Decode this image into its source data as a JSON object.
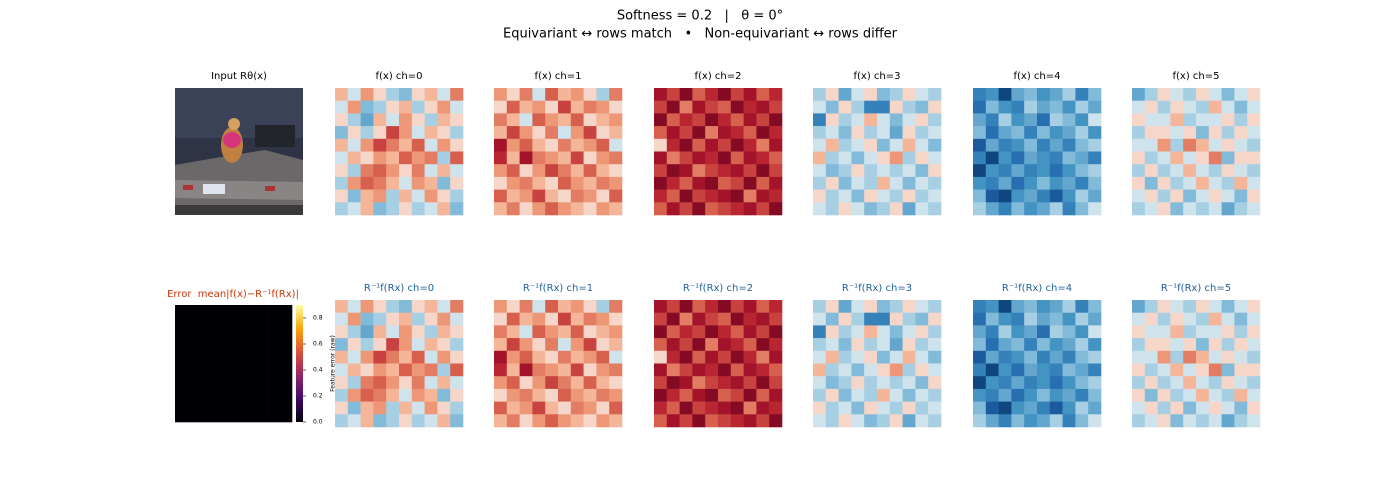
{
  "chart_data": {
    "type": "heatmap",
    "title": "Softness = 0.2   |   θ = 0°",
    "subtitle": "Equivariant ↔ rows match   •   Non-equivariant ↔ rows differ",
    "input_title": "Input Rθ(x)",
    "colormap": "RdBu_r",
    "clim": [
      -1,
      1
    ],
    "channels": [
      {
        "top_title": "f(x) ch=0",
        "bottom_title": "R⁻¹f(Rx) ch=0",
        "values": [
          [
            0.2,
            -0.1,
            0.3,
            0.1,
            -0.2,
            -0.3,
            0.1,
            0.2,
            -0.1,
            0.4
          ],
          [
            -0.1,
            0.3,
            -0.3,
            -0.2,
            0.1,
            0.2,
            -0.2,
            0.1,
            0.3,
            -0.1
          ],
          [
            0.1,
            -0.2,
            -0.4,
            0.2,
            -0.1,
            0.3,
            0.1,
            -0.2,
            0.2,
            0.1
          ],
          [
            -0.3,
            0.1,
            -0.2,
            0.1,
            0.6,
            0.3,
            -0.1,
            0.2,
            0.1,
            -0.2
          ],
          [
            0.2,
            -0.1,
            0.3,
            0.6,
            0.4,
            0.2,
            0.5,
            -0.1,
            0.3,
            0.1
          ],
          [
            -0.1,
            0.2,
            0.1,
            0.3,
            0.2,
            0.5,
            0.3,
            0.4,
            -0.2,
            0.5
          ],
          [
            0.1,
            -0.2,
            0.4,
            0.5,
            0.3,
            0.1,
            0.4,
            -0.1,
            0.2,
            -0.1
          ],
          [
            -0.2,
            0.3,
            0.5,
            0.4,
            0.2,
            -0.1,
            0.3,
            0.2,
            -0.3,
            0.1
          ],
          [
            0.1,
            -0.3,
            0.2,
            0.3,
            -0.2,
            0.2,
            -0.1,
            0.3,
            0.1,
            -0.2
          ],
          [
            -0.2,
            -0.1,
            0.2,
            -0.3,
            -0.2,
            0.1,
            -0.2,
            -0.1,
            0.2,
            -0.3
          ]
        ]
      },
      {
        "top_title": "f(x) ch=1",
        "bottom_title": "R⁻¹f(Rx) ch=1",
        "values": [
          [
            0.3,
            0.1,
            0.4,
            -0.1,
            0.5,
            0.2,
            0.3,
            0.1,
            -0.2,
            0.4
          ],
          [
            0.1,
            0.5,
            0.2,
            0.3,
            0.1,
            0.6,
            0.2,
            0.4,
            0.3,
            0.1
          ],
          [
            0.4,
            0.2,
            -0.1,
            0.5,
            0.3,
            0.2,
            0.5,
            0.1,
            0.2,
            0.3
          ],
          [
            0.2,
            0.6,
            0.3,
            0.1,
            0.4,
            -0.1,
            0.3,
            0.6,
            0.1,
            0.2
          ],
          [
            0.8,
            0.3,
            0.5,
            0.2,
            0.1,
            0.4,
            0.2,
            0.3,
            0.5,
            -0.1
          ],
          [
            0.7,
            0.2,
            0.8,
            0.4,
            0.3,
            0.2,
            0.6,
            0.1,
            0.3,
            0.4
          ],
          [
            0.3,
            0.5,
            0.1,
            0.3,
            0.6,
            0.4,
            0.2,
            0.5,
            0.2,
            0.1
          ],
          [
            0.1,
            0.3,
            0.4,
            0.2,
            0.1,
            0.5,
            0.3,
            0.2,
            0.4,
            0.3
          ],
          [
            0.5,
            0.2,
            0.3,
            0.6,
            0.2,
            0.1,
            0.4,
            0.3,
            0.1,
            0.5
          ],
          [
            0.2,
            0.4,
            0.1,
            0.3,
            0.5,
            0.3,
            0.2,
            0.1,
            0.3,
            0.2
          ]
        ]
      },
      {
        "top_title": "f(x) ch=2",
        "bottom_title": "R⁻¹f(Rx) ch=2",
        "values": [
          [
            0.8,
            0.6,
            0.9,
            0.5,
            0.7,
            0.9,
            0.6,
            0.8,
            0.5,
            0.7
          ],
          [
            0.6,
            0.9,
            0.4,
            0.8,
            0.6,
            0.5,
            0.9,
            0.7,
            0.8,
            0.6
          ],
          [
            0.9,
            0.5,
            0.7,
            0.6,
            0.9,
            0.7,
            0.5,
            0.8,
            0.6,
            0.9
          ],
          [
            0.5,
            0.8,
            0.6,
            0.9,
            0.4,
            0.8,
            0.7,
            0.5,
            0.9,
            0.7
          ],
          [
            0.1,
            0.7,
            0.9,
            0.5,
            0.8,
            0.6,
            0.9,
            0.7,
            0.4,
            0.8
          ],
          [
            0.8,
            0.4,
            0.6,
            0.8,
            0.7,
            0.9,
            0.5,
            0.8,
            0.7,
            0.5
          ],
          [
            0.6,
            0.9,
            0.8,
            0.4,
            0.6,
            0.7,
            0.8,
            0.6,
            0.9,
            0.6
          ],
          [
            0.9,
            0.7,
            0.5,
            0.8,
            0.9,
            0.5,
            0.6,
            0.9,
            0.5,
            0.8
          ],
          [
            0.7,
            0.5,
            0.9,
            0.6,
            0.7,
            0.8,
            0.9,
            0.4,
            0.8,
            0.7
          ],
          [
            0.5,
            0.8,
            0.6,
            0.9,
            0.5,
            0.6,
            0.7,
            0.8,
            0.6,
            0.9
          ]
        ]
      },
      {
        "top_title": "f(x) ch=3",
        "bottom_title": "R⁻¹f(Rx) ch=3",
        "values": [
          [
            -0.2,
            0.1,
            -0.4,
            -0.1,
            0.1,
            -0.3,
            -0.2,
            0.1,
            -0.1,
            -0.2
          ],
          [
            -0.1,
            -0.3,
            0.1,
            -0.2,
            -0.6,
            -0.6,
            0.1,
            -0.2,
            -0.3,
            0.1
          ],
          [
            -0.6,
            0.1,
            -0.2,
            -0.1,
            0.2,
            -0.1,
            -0.3,
            -0.1,
            0.1,
            -0.2
          ],
          [
            -0.2,
            -0.1,
            -0.3,
            0.1,
            -0.2,
            -0.1,
            -0.4,
            0.1,
            -0.2,
            -0.1
          ],
          [
            -0.1,
            0.2,
            -0.2,
            -0.1,
            0.1,
            -0.3,
            -0.1,
            0.2,
            -0.1,
            -0.3
          ],
          [
            0.2,
            -0.2,
            -0.1,
            -0.3,
            -0.1,
            0.1,
            0.3,
            -0.2,
            0.1,
            -0.1
          ],
          [
            -0.1,
            -0.3,
            -0.2,
            0.1,
            -0.2,
            -0.1,
            -0.2,
            -0.1,
            -0.3,
            0.1
          ],
          [
            -0.2,
            0.1,
            -0.3,
            -0.1,
            -0.2,
            0.2,
            -0.1,
            -0.3,
            -0.1,
            -0.2
          ],
          [
            0.1,
            -0.2,
            -0.1,
            -0.3,
            0.1,
            -0.1,
            -0.2,
            0.1,
            -0.2,
            -0.1
          ],
          [
            -0.1,
            -0.2,
            0.1,
            -0.1,
            -0.3,
            -0.2,
            0.1,
            -0.4,
            -0.1,
            -0.2
          ]
        ]
      },
      {
        "top_title": "f(x) ch=4",
        "bottom_title": "R⁻¹f(Rx) ch=4",
        "values": [
          [
            -0.6,
            -0.5,
            -0.9,
            -0.4,
            -0.3,
            -0.5,
            -0.4,
            -0.2,
            -0.6,
            -0.3
          ],
          [
            -0.7,
            -0.3,
            -0.5,
            -0.6,
            -0.2,
            -0.4,
            -0.3,
            -0.5,
            -0.2,
            -0.4
          ],
          [
            -0.4,
            -0.6,
            -0.2,
            -0.5,
            -0.4,
            -0.7,
            -0.2,
            -0.3,
            -0.5,
            -0.1
          ],
          [
            -0.3,
            -0.7,
            -0.4,
            -0.3,
            -0.6,
            -0.3,
            -0.5,
            -0.4,
            -0.2,
            -0.5
          ],
          [
            -0.8,
            -0.4,
            -0.6,
            -0.5,
            -0.3,
            -0.6,
            -0.4,
            -0.6,
            -0.3,
            -0.2
          ],
          [
            -0.6,
            -0.9,
            -0.5,
            -0.7,
            -0.4,
            -0.5,
            -0.6,
            -0.3,
            -0.4,
            -0.6
          ],
          [
            -0.9,
            -0.5,
            -0.6,
            -0.4,
            -0.6,
            -0.5,
            -0.7,
            -0.5,
            -0.3,
            -0.2
          ],
          [
            -0.5,
            -0.6,
            -0.4,
            -0.7,
            -0.5,
            -0.3,
            -0.5,
            -0.4,
            -0.6,
            -0.3
          ],
          [
            -0.3,
            -0.8,
            -0.9,
            -0.5,
            -0.4,
            -0.6,
            -0.8,
            -0.5,
            -0.2,
            -0.4
          ],
          [
            -0.2,
            -0.4,
            -0.6,
            -0.3,
            -0.5,
            -0.4,
            -0.2,
            -0.6,
            -0.3,
            -0.1
          ]
        ]
      },
      {
        "top_title": "f(x) ch=5",
        "bottom_title": "R⁻¹f(Rx) ch=5",
        "values": [
          [
            -0.4,
            -0.2,
            0.1,
            -0.1,
            -0.2,
            0.1,
            -0.1,
            -0.3,
            -0.1,
            0.1
          ],
          [
            -0.1,
            0.1,
            -0.2,
            0.1,
            -0.1,
            -0.2,
            0.2,
            -0.1,
            -0.3,
            -0.1
          ],
          [
            0.1,
            -0.1,
            -0.1,
            0.2,
            -0.2,
            -0.1,
            -0.1,
            0.1,
            -0.2,
            0.1
          ],
          [
            -0.2,
            0.1,
            0.1,
            -0.1,
            0.1,
            -0.3,
            0.1,
            -0.2,
            0.1,
            -0.1
          ],
          [
            -0.1,
            -0.1,
            0.3,
            -0.2,
            0.4,
            0.2,
            -0.1,
            0.1,
            -0.1,
            -0.2
          ],
          [
            0.1,
            -0.2,
            -0.1,
            0.2,
            -0.1,
            0.1,
            0.4,
            -0.3,
            0.1,
            0.1
          ],
          [
            -0.2,
            0.1,
            -0.2,
            -0.1,
            0.2,
            -0.1,
            -0.2,
            0.1,
            -0.1,
            -0.2
          ],
          [
            0.1,
            -0.3,
            0.1,
            -0.2,
            -0.1,
            0.2,
            -0.1,
            -0.2,
            0.2,
            -0.1
          ],
          [
            -0.1,
            0.1,
            -0.2,
            0.1,
            -0.3,
            -0.1,
            0.1,
            -0.1,
            -0.3,
            0.1
          ],
          [
            -0.2,
            -0.1,
            0.1,
            -0.3,
            -0.1,
            -0.2,
            -0.1,
            -0.4,
            -0.2,
            -0.1
          ]
        ]
      }
    ],
    "error": {
      "title": "Error  mean|f(x)−R⁻¹f(Rx)|",
      "colormap": "inferno",
      "clim": [
        0,
        0.9
      ],
      "colorbar_label": "Feature error (raw)",
      "ticks": [
        {
          "value": 0,
          "label": "0.0"
        },
        {
          "value": 0.2,
          "label": "0.2"
        },
        {
          "value": 0.4,
          "label": "0.4"
        },
        {
          "value": 0.6,
          "label": "0.6"
        },
        {
          "value": 0.8,
          "label": "0.8"
        }
      ],
      "values": [
        [
          0,
          0,
          0,
          0,
          0,
          0,
          0,
          0,
          0,
          0
        ],
        [
          0,
          0,
          0,
          0,
          0,
          0,
          0,
          0,
          0,
          0
        ],
        [
          0,
          0,
          0,
          0,
          0,
          0,
          0,
          0,
          0,
          0
        ],
        [
          0,
          0,
          0,
          0,
          0,
          0,
          0,
          0,
          0,
          0
        ],
        [
          0,
          0,
          0,
          0,
          0,
          0,
          0,
          0,
          0,
          0
        ],
        [
          0,
          0,
          0,
          0,
          0,
          0,
          0,
          0,
          0,
          0
        ],
        [
          0,
          0,
          0,
          0,
          0,
          0,
          0,
          0,
          0,
          0
        ],
        [
          0,
          0,
          0,
          0,
          0,
          0,
          0,
          0,
          0,
          0
        ],
        [
          0,
          0,
          0,
          0,
          0,
          0,
          0,
          0,
          0,
          0
        ],
        [
          0,
          0,
          0,
          0,
          0,
          0,
          0,
          0,
          0,
          0
        ]
      ]
    }
  }
}
